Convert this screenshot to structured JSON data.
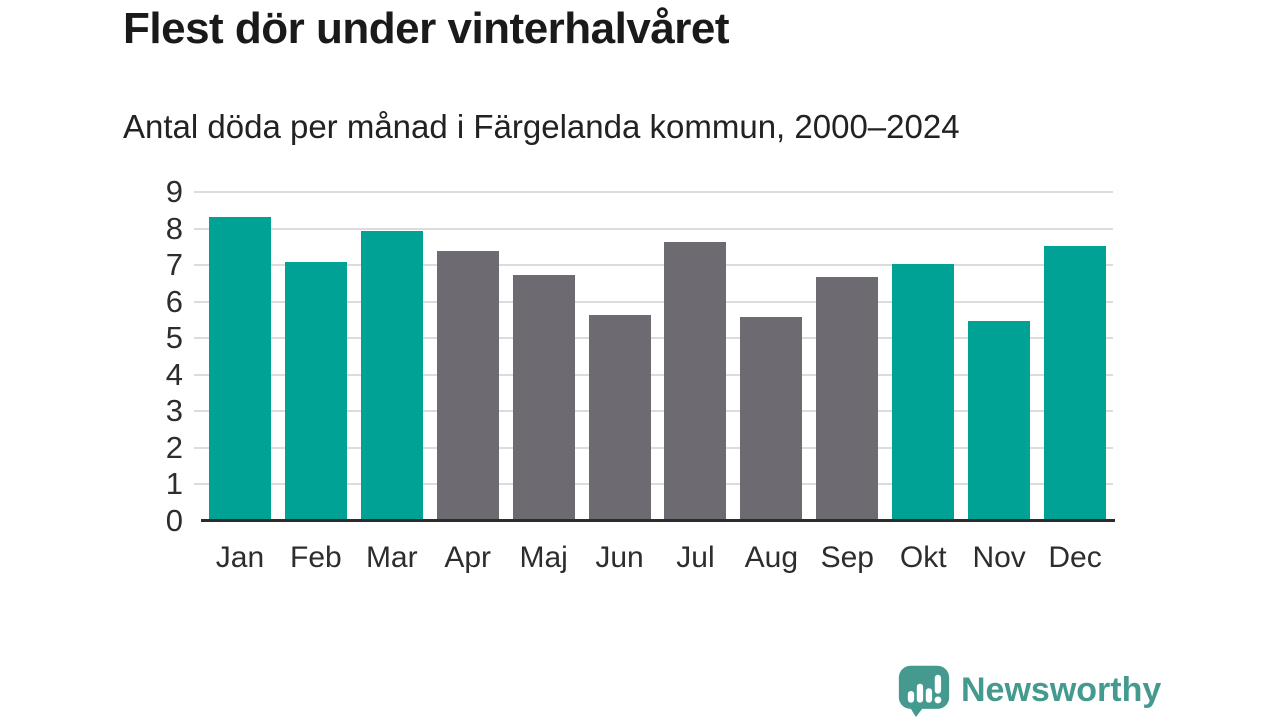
{
  "chart_data": {
    "type": "bar",
    "title": "Flest dör under vinterhalvåret",
    "subtitle": "Antal döda per månad i Färgelanda kommun, 2000–2024",
    "categories": [
      "Jan",
      "Feb",
      "Mar",
      "Apr",
      "Maj",
      "Jun",
      "Jul",
      "Aug",
      "Sep",
      "Okt",
      "Nov",
      "Dec"
    ],
    "values": [
      8.3,
      7.05,
      7.9,
      7.35,
      6.7,
      5.6,
      7.6,
      5.55,
      6.65,
      7.0,
      5.45,
      7.5
    ],
    "bar_color_keys": [
      "winter",
      "winter",
      "winter",
      "summer",
      "summer",
      "summer",
      "summer",
      "summer",
      "summer",
      "winter",
      "winter",
      "winter"
    ],
    "colors": {
      "winter": "#00a296",
      "summer": "#6d6b71"
    },
    "xlabel": "",
    "ylabel": "",
    "ylim": [
      0,
      9
    ],
    "yticks": [
      0,
      1,
      2,
      3,
      4,
      5,
      6,
      7,
      8,
      9
    ],
    "grid": "horizontal-light",
    "legend": "none"
  },
  "footer": {
    "brand": "Newsworthy",
    "brand_color": "#459a90",
    "logo_icon": "bar-chart-speech-bubble"
  }
}
